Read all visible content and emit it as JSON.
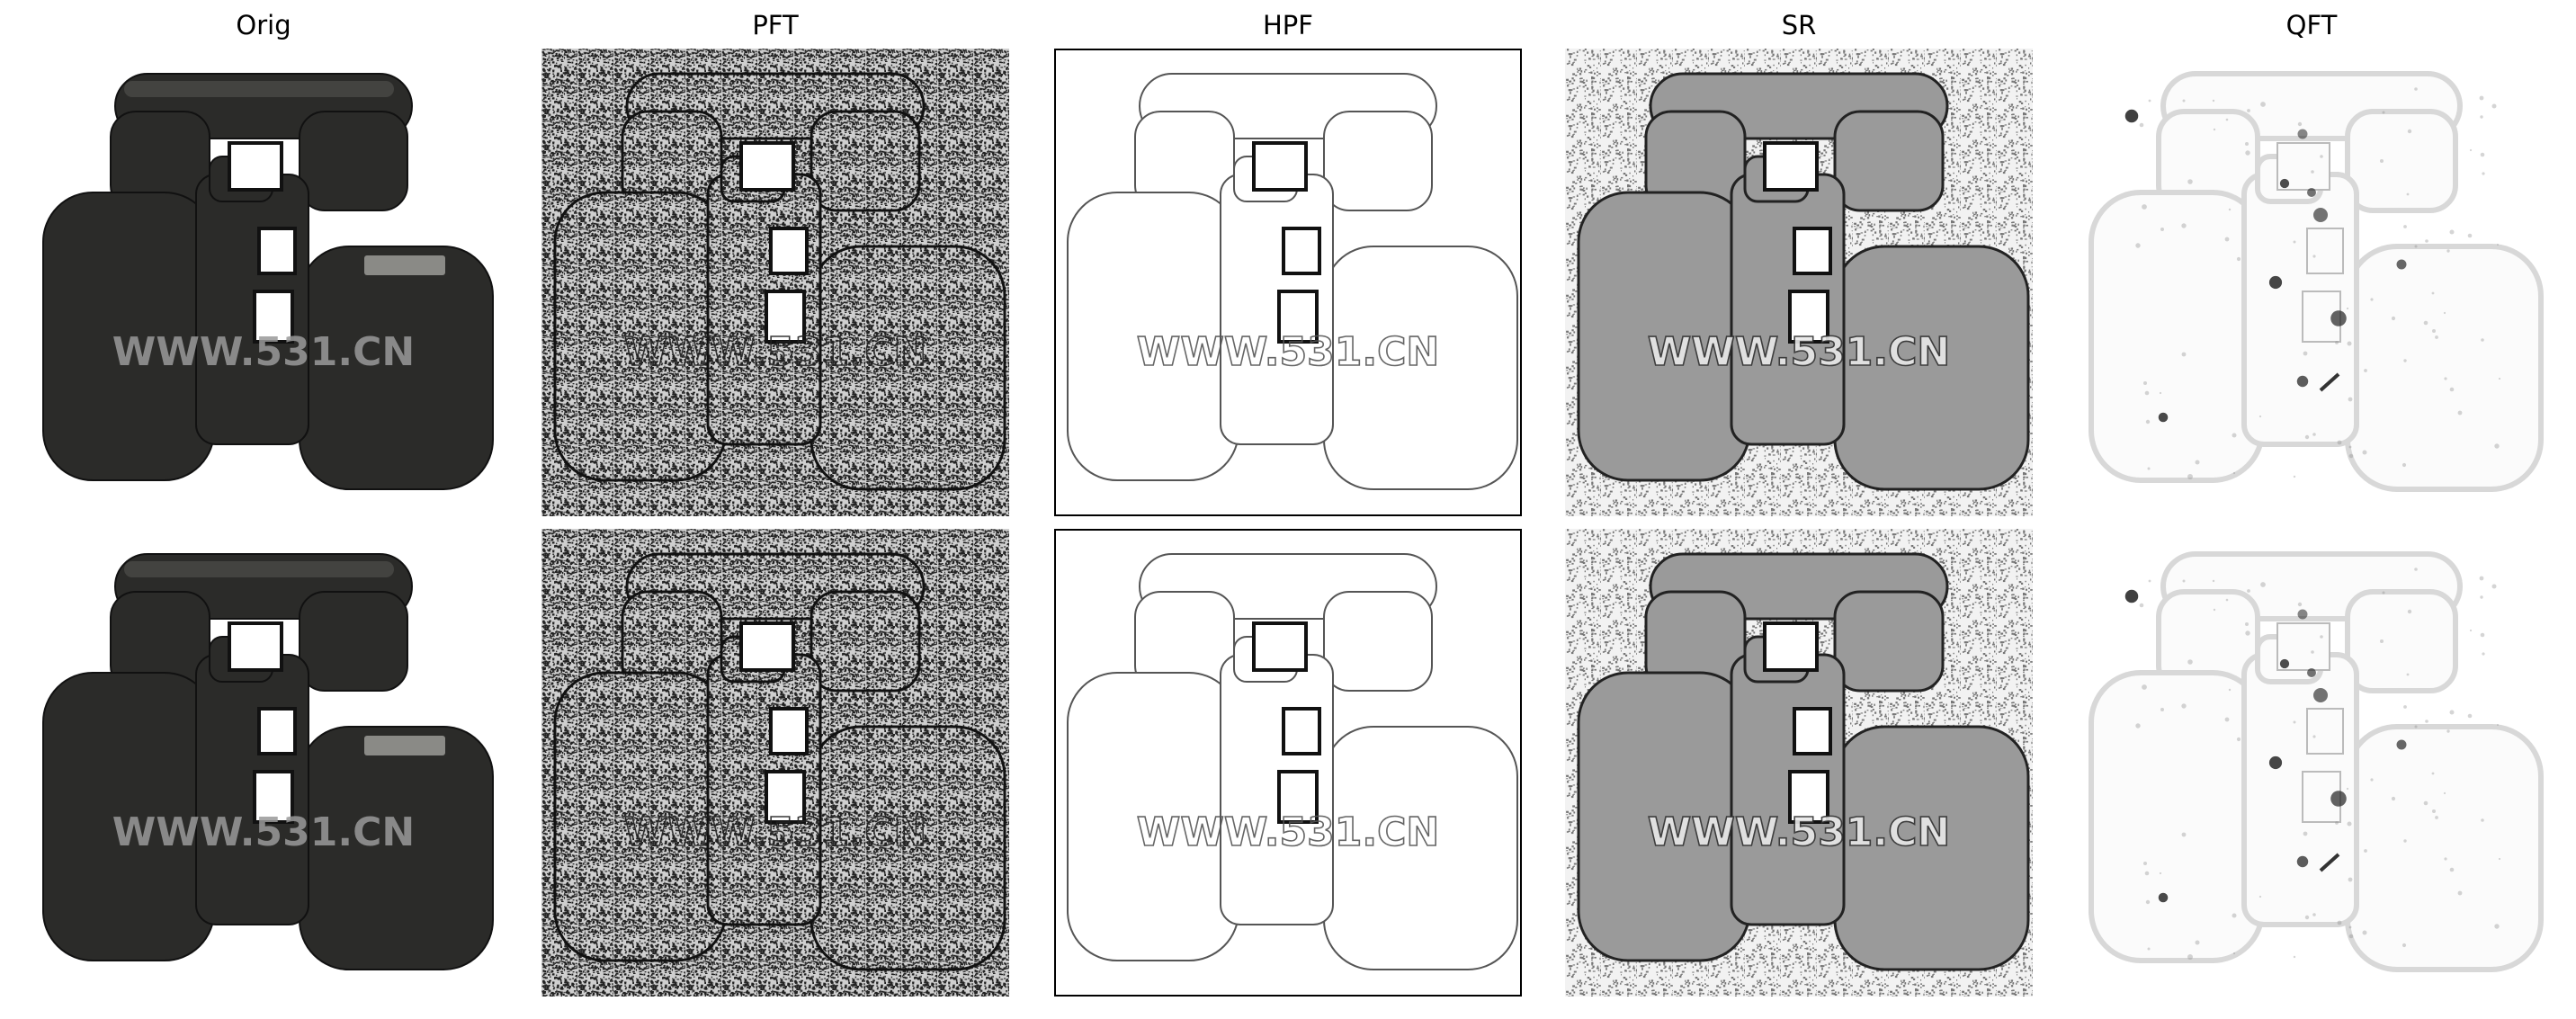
{
  "columns": [
    {
      "title": "Orig",
      "style": "orig"
    },
    {
      "title": "PFT",
      "style": "pft"
    },
    {
      "title": "HPF",
      "style": "hpf"
    },
    {
      "title": "SR",
      "style": "sr"
    },
    {
      "title": "QFT",
      "style": "qft"
    }
  ],
  "watermark": "WWW.531.CN",
  "rows": 2,
  "colors": {
    "background": "#ffffff",
    "orig_body": "#2b2b29",
    "edge": "#1a1a1a"
  }
}
